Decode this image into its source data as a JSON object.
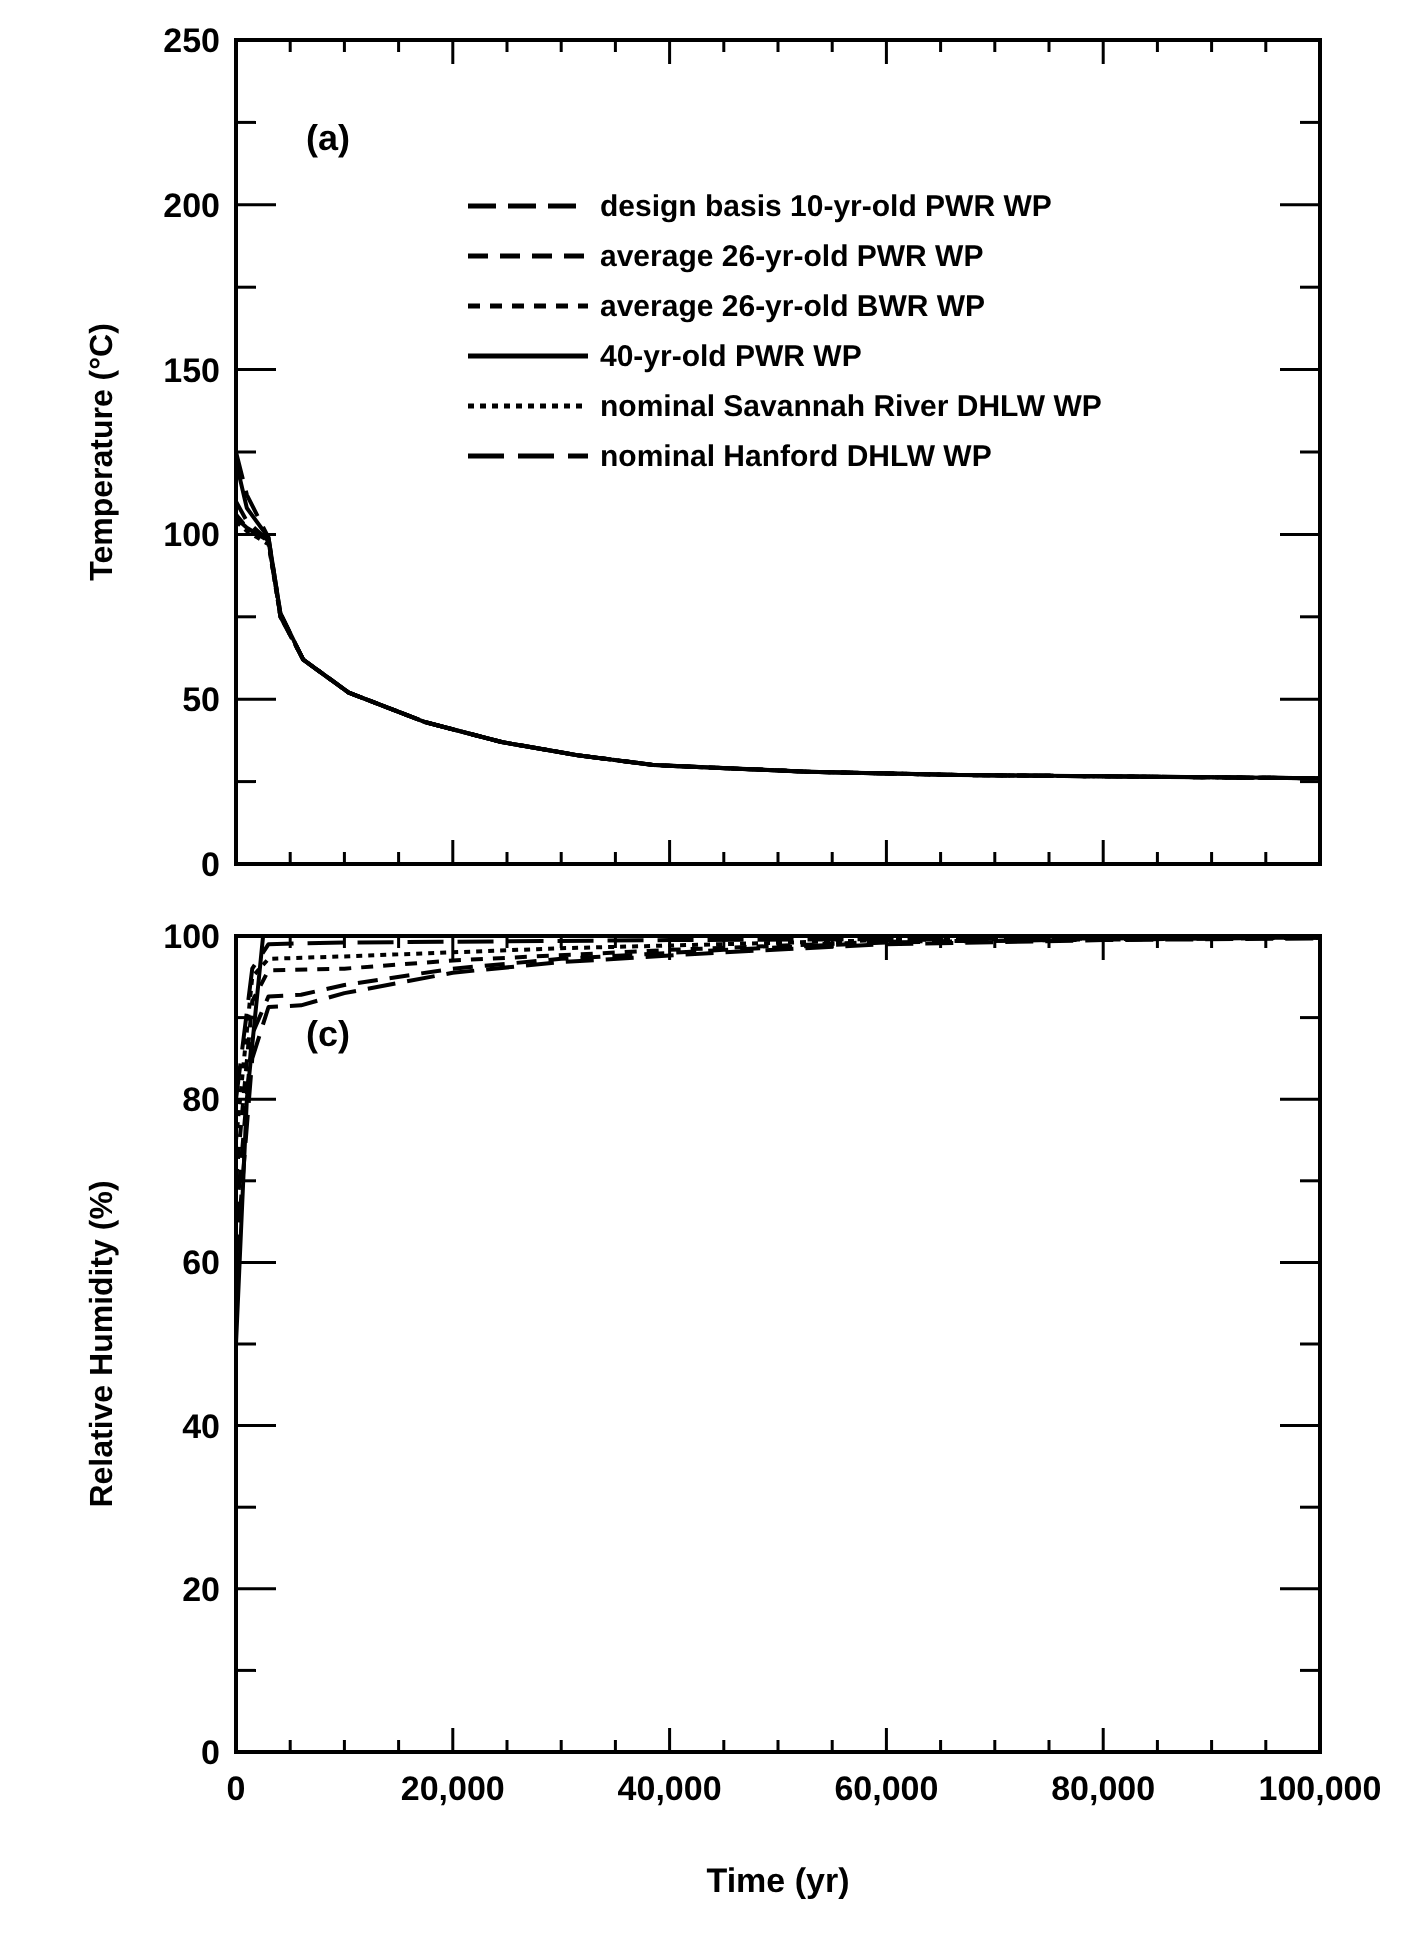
{
  "chart_data": [
    {
      "type": "line",
      "ylabel": "Temperature (°C)",
      "xlim": [
        0,
        100000
      ],
      "ylim": [
        0,
        250
      ],
      "xticks": [
        0,
        {
          "value": 5000,
          "label": null
        },
        {
          "value": 10000,
          "label": null
        },
        {
          "value": 15000,
          "label": null
        },
        20000,
        {
          "value": 25000,
          "label": null
        },
        {
          "value": 30000,
          "label": null
        },
        {
          "value": 35000,
          "label": null
        },
        40000,
        {
          "value": 45000,
          "label": null
        },
        {
          "value": 50000,
          "label": null
        },
        {
          "value": 55000,
          "label": null
        },
        60000,
        {
          "value": 65000,
          "label": null
        },
        {
          "value": 70000,
          "label": null
        },
        {
          "value": 75000,
          "label": null
        },
        80000,
        {
          "value": 85000,
          "label": null
        },
        {
          "value": 90000,
          "label": null
        },
        {
          "value": 95000,
          "label": null
        },
        100000
      ],
      "yticks": [
        0,
        {
          "value": 25,
          "label": null
        },
        50,
        {
          "value": 75,
          "label": null
        },
        100,
        {
          "value": 125,
          "label": null
        },
        150,
        {
          "value": 175,
          "label": null
        },
        200,
        {
          "value": 225,
          "label": null
        },
        250
      ],
      "tick_labels": "y",
      "legend": "top",
      "annotations": [
        "(a)"
      ],
      "series": [
        {
          "name": "design basis 10-yr-old PWR WP",
          "color": "#000000",
          "line_style": "dashed",
          "x": [
            0,
            1000,
            3000,
            4100,
            6200,
            10400,
            17500,
            24500,
            31500,
            38600,
            52700,
            66700,
            100000
          ],
          "values": [
            125,
            112,
            99,
            76,
            62,
            52,
            43,
            37,
            33,
            30,
            28,
            27,
            26
          ]
        },
        {
          "name": "average 26-yr-old PWR WP",
          "color": "#000000",
          "line_style": "dashed",
          "x": [
            0,
            1000,
            3000,
            4100,
            6200,
            10400,
            17500,
            24500,
            31500,
            38600,
            52700,
            66700,
            100000
          ],
          "values": [
            110,
            104,
            98,
            76,
            62,
            52,
            43,
            37,
            33,
            30,
            28,
            27,
            26
          ]
        },
        {
          "name": "average 26-yr-old BWR WP",
          "color": "#000000",
          "line_style": "dashed",
          "x": [
            0,
            1000,
            3000,
            4100,
            6200,
            10400,
            17500,
            24500,
            31500,
            38600,
            52700,
            66700,
            100000
          ],
          "values": [
            106,
            102,
            98,
            75,
            62,
            52,
            43,
            37,
            33,
            30,
            28,
            27,
            26
          ]
        },
        {
          "name": "40-yr-old PWR WP",
          "color": "#000000",
          "line_style": "solid",
          "x": [
            0,
            1000,
            3000,
            4100,
            6200,
            10400,
            17500,
            24500,
            31500,
            38600,
            52700,
            66700,
            100000
          ],
          "values": [
            122,
            108,
            99,
            76,
            62,
            52,
            43,
            37,
            33,
            30,
            28,
            27,
            26
          ]
        },
        {
          "name": "nominal Savannah River DHLW WP",
          "color": "#000000",
          "line_style": "dotted",
          "x": [
            0,
            1000,
            3000,
            4100,
            6200,
            10400,
            17500,
            24500,
            31500,
            38600,
            52700,
            66700,
            100000
          ],
          "values": [
            104,
            101,
            97,
            75,
            62,
            52,
            43,
            37,
            33,
            30,
            28,
            27,
            26
          ]
        },
        {
          "name": "nominal Hanford DHLW WP",
          "color": "#000000",
          "line_style": "dashed",
          "x": [
            0,
            1000,
            3000,
            4100,
            6200,
            10400,
            17500,
            24500,
            31500,
            38600,
            52700,
            66700,
            100000
          ],
          "values": [
            105,
            102,
            98,
            75,
            62,
            52,
            43,
            37,
            33,
            30,
            28,
            27,
            26
          ]
        }
      ]
    },
    {
      "type": "line",
      "xlabel": "Time (yr)",
      "ylabel": "Relative Humidity (%)",
      "xlim": [
        0,
        100000
      ],
      "ylim": [
        0,
        100
      ],
      "xticks": [
        0,
        {
          "value": 5000,
          "label": null
        },
        {
          "value": 10000,
          "label": null
        },
        {
          "value": 15000,
          "label": null
        },
        {
          "value": 20000,
          "label": "20,000"
        },
        {
          "value": 25000,
          "label": null
        },
        {
          "value": 30000,
          "label": null
        },
        {
          "value": 35000,
          "label": null
        },
        {
          "value": 40000,
          "label": "40,000"
        },
        {
          "value": 45000,
          "label": null
        },
        {
          "value": 50000,
          "label": null
        },
        {
          "value": 55000,
          "label": null
        },
        {
          "value": 60000,
          "label": "60,000"
        },
        {
          "value": 65000,
          "label": null
        },
        {
          "value": 70000,
          "label": null
        },
        {
          "value": 75000,
          "label": null
        },
        {
          "value": 80000,
          "label": "80,000"
        },
        {
          "value": 85000,
          "label": null
        },
        {
          "value": 90000,
          "label": null
        },
        {
          "value": 95000,
          "label": null
        },
        {
          "value": 100000,
          "label": "100,000"
        }
      ],
      "yticks": [
        0,
        {
          "value": 10,
          "label": null
        },
        20,
        {
          "value": 30,
          "label": null
        },
        40,
        {
          "value": 50,
          "label": null
        },
        60,
        {
          "value": 70,
          "label": null
        },
        80,
        {
          "value": 90,
          "label": null
        },
        100
      ],
      "annotations": [
        "(c)"
      ],
      "series": [
        {
          "color": "#000000",
          "line_style": "dashed",
          "x": [
            0,
            1500,
            3000,
            6000,
            10000,
            20000,
            30000,
            45000,
            60000,
            80000,
            100000
          ],
          "values": [
            60,
            85,
            91.3,
            91.5,
            93,
            95.5,
            96.8,
            98,
            99,
            99.5,
            99.7
          ]
        },
        {
          "color": "#000000",
          "line_style": "dashed",
          "x": [
            0,
            1500,
            3000,
            6000,
            10000,
            20000,
            30000,
            45000,
            60000,
            80000,
            100000
          ],
          "values": [
            65,
            88,
            92.6,
            92.8,
            94,
            96,
            97.2,
            98.3,
            99.2,
            99.6,
            99.8
          ]
        },
        {
          "color": "#000000",
          "line_style": "dashed",
          "x": [
            0,
            1500,
            3000,
            10000,
            20000,
            40000,
            60000,
            100000
          ],
          "values": [
            70,
            92,
            95.8,
            96,
            97,
            98.3,
            99.3,
            99.8
          ]
        },
        {
          "color": "#000000",
          "line_style": "solid",
          "x": [
            0,
            1000,
            2500,
            100000
          ],
          "values": [
            50,
            80,
            100,
            100
          ]
        },
        {
          "color": "#000000",
          "line_style": "dotted",
          "x": [
            0,
            1500,
            3000,
            10000,
            30000,
            60000,
            100000
          ],
          "values": [
            75,
            95,
            97.2,
            97.5,
            98.5,
            99.5,
            99.9
          ]
        },
        {
          "color": "#000000",
          "line_style": "dashed",
          "x": [
            0,
            1500,
            3000,
            10000,
            40000,
            100000
          ],
          "values": [
            80,
            96,
            99,
            99.2,
            99.5,
            99.8
          ]
        }
      ]
    }
  ]
}
